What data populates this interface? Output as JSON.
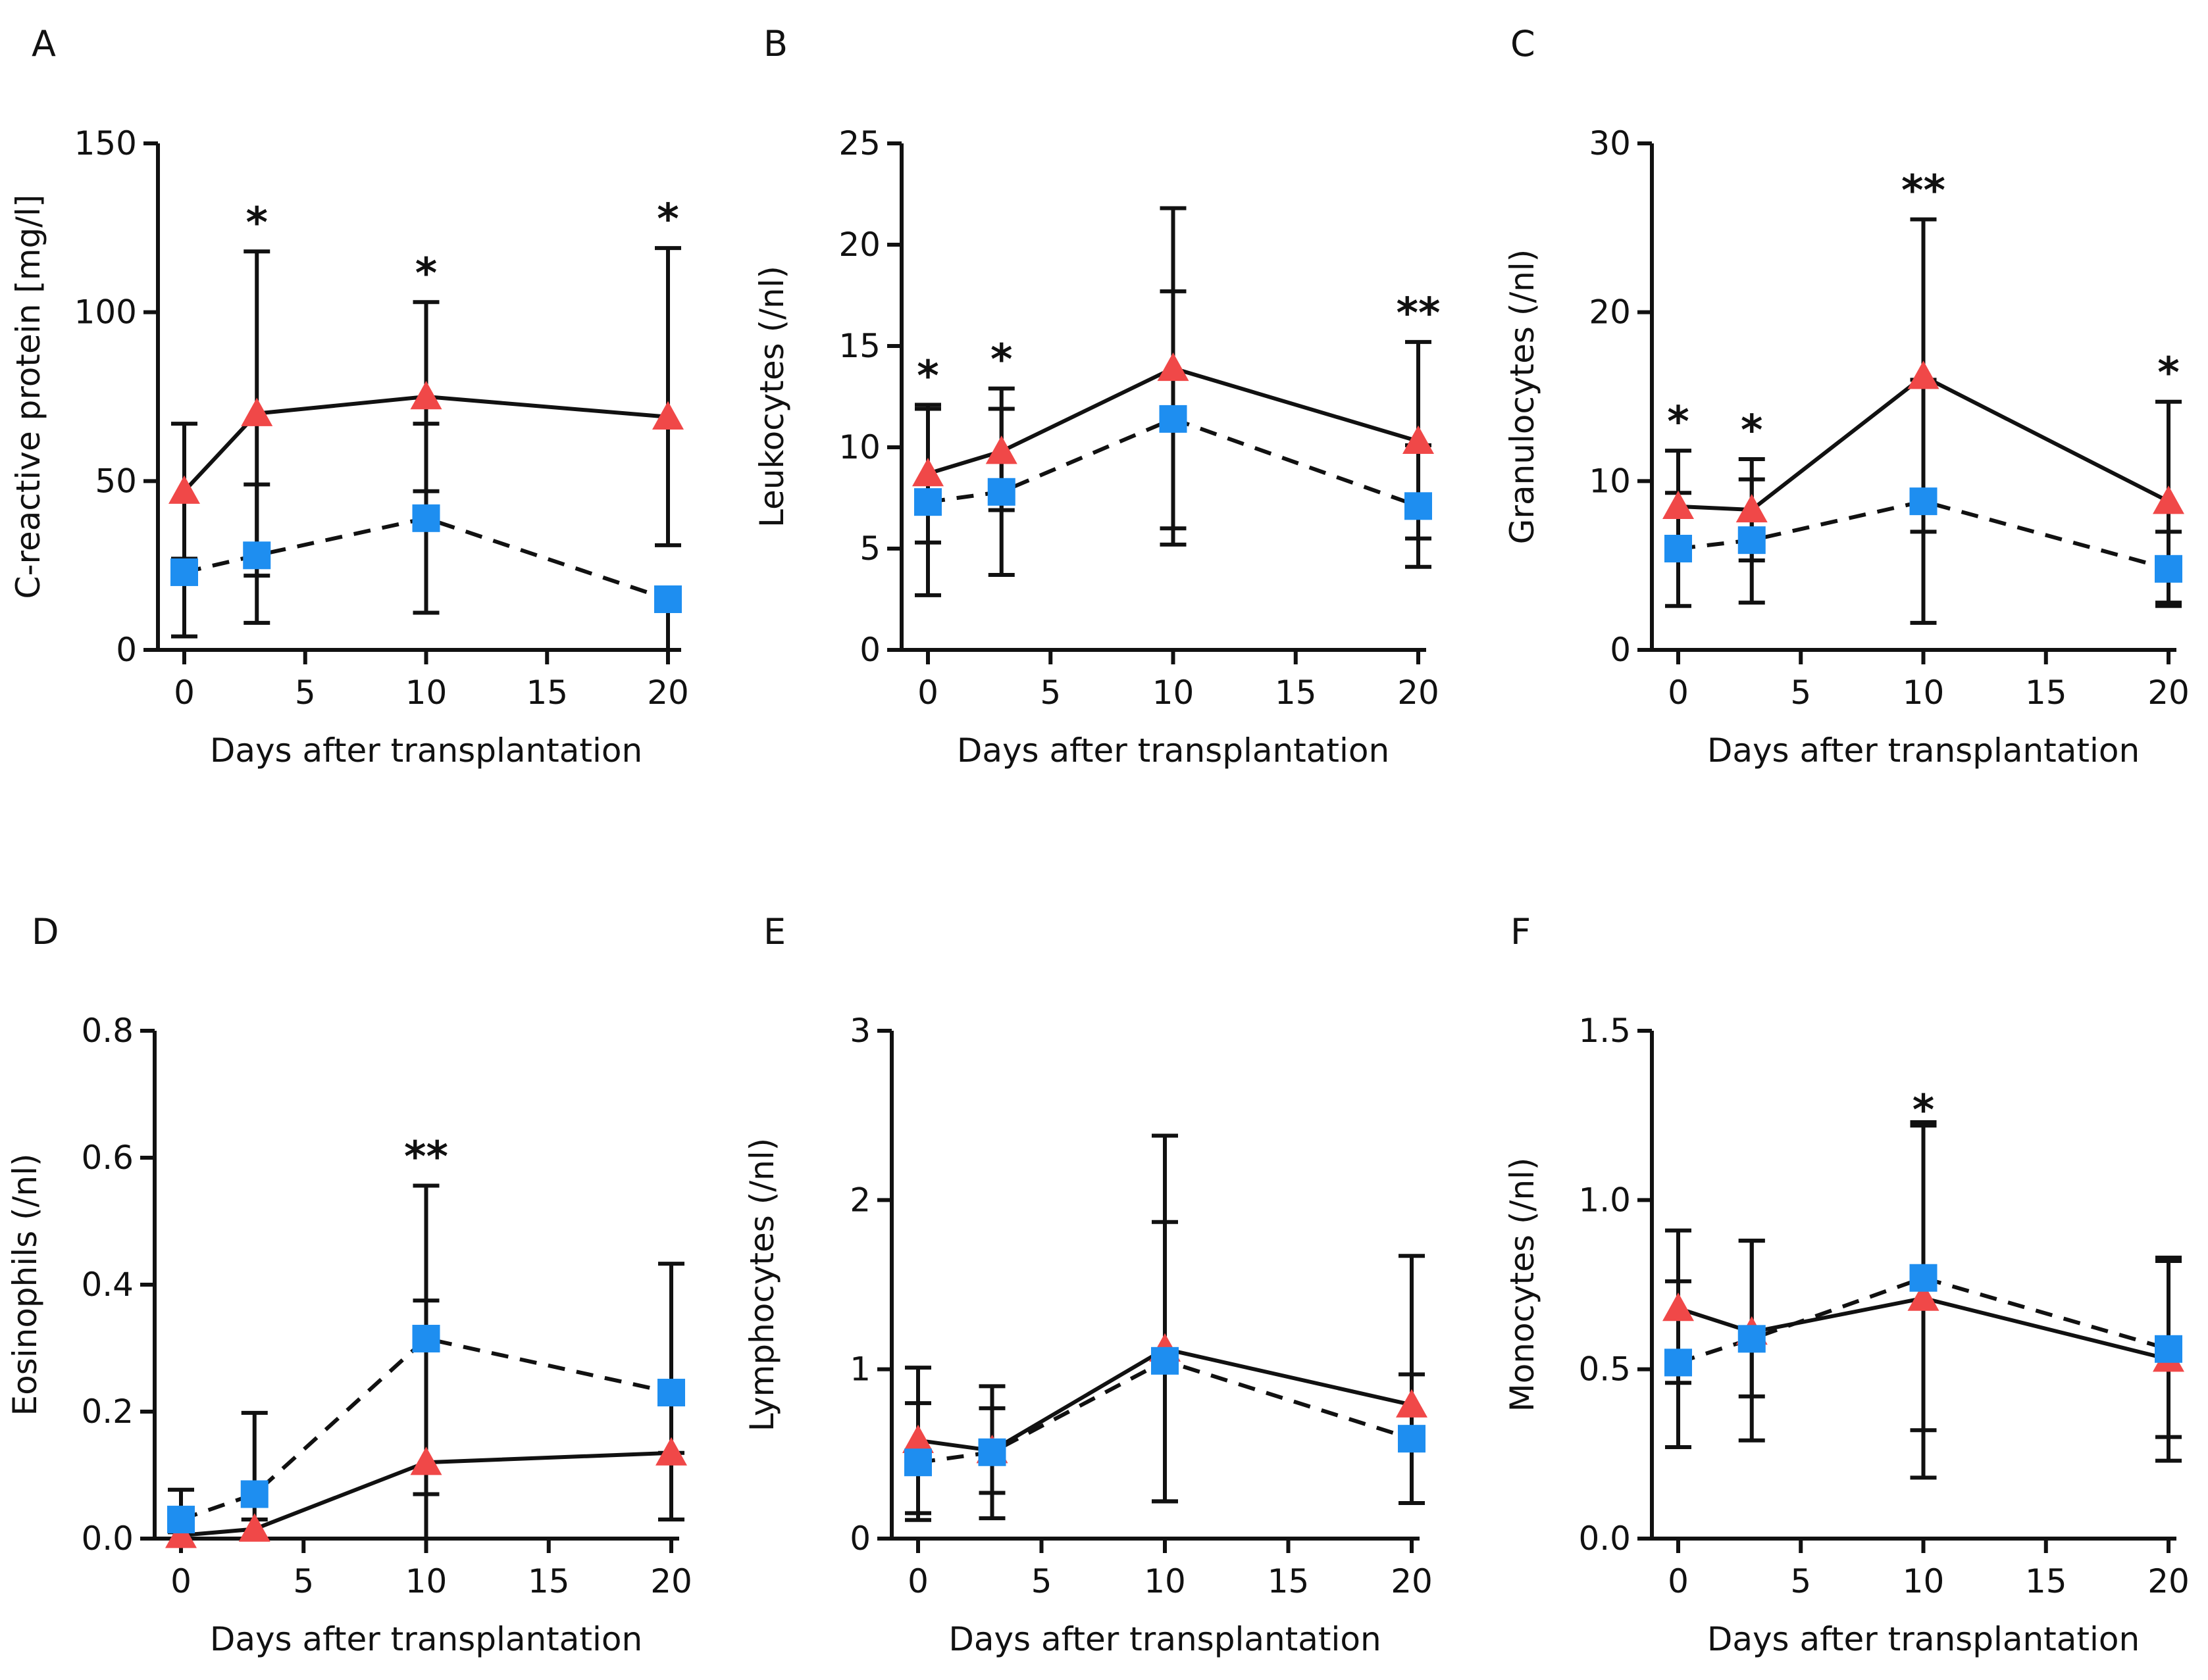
{
  "chart_data": [
    {
      "type": "line",
      "panel": "A",
      "xlabel": "Days after transplantation",
      "ylabel": "C-reactive protein [mg/l]",
      "xlim": [
        0,
        20
      ],
      "ylim": [
        0,
        150
      ],
      "xticks": [
        0,
        5,
        10,
        15,
        20
      ],
      "yticks": [
        0,
        50,
        100,
        150
      ],
      "x": [
        0,
        3,
        10,
        20
      ],
      "series": [
        {
          "name": "red-triangle",
          "marker": "triangle",
          "color": "#f04848",
          "line": "solid",
          "values": [
            47,
            70,
            75,
            69
          ],
          "err_low": [
            27,
            22,
            47,
            31
          ],
          "err_high": [
            67,
            118,
            103,
            119
          ]
        },
        {
          "name": "blue-square",
          "marker": "square",
          "color": "#1e8ef0",
          "line": "dashed",
          "values": [
            23,
            28,
            39,
            15
          ],
          "err_low": [
            4,
            8,
            11,
            0
          ],
          "err_high": [
            26,
            49,
            67,
            17
          ]
        }
      ],
      "annotations": [
        {
          "x": 3,
          "y": 118,
          "text": "*"
        },
        {
          "x": 10,
          "y": 103,
          "text": "*"
        },
        {
          "x": 20,
          "y": 119,
          "text": "*"
        }
      ]
    },
    {
      "type": "line",
      "panel": "B",
      "xlabel": "Days after transplantation",
      "ylabel": "Leukocytes (/nl)",
      "xlim": [
        0,
        20
      ],
      "ylim": [
        0,
        25
      ],
      "xticks": [
        0,
        5,
        10,
        15,
        20
      ],
      "yticks": [
        0,
        5,
        10,
        15,
        20,
        25
      ],
      "x": [
        0,
        3,
        10,
        20
      ],
      "series": [
        {
          "name": "red-triangle",
          "marker": "triangle",
          "color": "#f04848",
          "line": "solid",
          "values": [
            8.7,
            9.8,
            13.9,
            10.3
          ],
          "err_low": [
            5.3,
            6.9,
            6.0,
            5.5
          ],
          "err_high": [
            12.1,
            12.9,
            21.8,
            15.2
          ]
        },
        {
          "name": "blue-square",
          "marker": "square",
          "color": "#1e8ef0",
          "line": "dashed",
          "values": [
            7.3,
            7.8,
            11.4,
            7.1
          ],
          "err_low": [
            2.7,
            3.7,
            5.2,
            4.1
          ],
          "err_high": [
            11.9,
            11.9,
            17.7,
            10.1
          ]
        }
      ],
      "annotations": [
        {
          "x": 0,
          "y": 12.1,
          "text": "*"
        },
        {
          "x": 3,
          "y": 12.9,
          "text": "*"
        },
        {
          "x": 20,
          "y": 15.2,
          "text": "**"
        }
      ]
    },
    {
      "type": "line",
      "panel": "C",
      "xlabel": "Days after transplantation",
      "ylabel": "Granulocytes (/nl)",
      "xlim": [
        0,
        20
      ],
      "ylim": [
        0,
        30
      ],
      "xticks": [
        0,
        5,
        10,
        15,
        20
      ],
      "yticks": [
        0,
        10,
        20,
        30
      ],
      "x": [
        0,
        3,
        10,
        20
      ],
      "series": [
        {
          "name": "red-triangle",
          "marker": "triangle",
          "color": "#f04848",
          "line": "solid",
          "values": [
            8.5,
            8.3,
            16.2,
            8.8
          ],
          "err_low": [
            5.3,
            5.3,
            7.0,
            2.8
          ],
          "err_high": [
            11.8,
            11.3,
            25.5,
            14.7
          ]
        },
        {
          "name": "blue-square",
          "marker": "square",
          "color": "#1e8ef0",
          "line": "dashed",
          "values": [
            6.0,
            6.5,
            8.8,
            4.8
          ],
          "err_low": [
            2.6,
            2.8,
            1.6,
            2.6
          ],
          "err_high": [
            9.3,
            10.1,
            16.0,
            7.0
          ]
        }
      ],
      "annotations": [
        {
          "x": 0,
          "y": 11.8,
          "text": "*"
        },
        {
          "x": 3,
          "y": 11.3,
          "text": "*"
        },
        {
          "x": 10,
          "y": 25.5,
          "text": "**"
        },
        {
          "x": 20,
          "y": 14.7,
          "text": "*"
        }
      ]
    },
    {
      "type": "line",
      "panel": "D",
      "xlabel": "Days after transplantation",
      "ylabel": "Eosinophils (/nl)",
      "xlim": [
        0,
        20
      ],
      "ylim": [
        0,
        0.8
      ],
      "xticks": [
        0,
        5,
        10,
        15,
        20
      ],
      "yticks": [
        0.0,
        0.2,
        0.4,
        0.6,
        0.8
      ],
      "ytick_labels": [
        "0.0",
        "0.2",
        "0.4",
        "0.6",
        "0.8"
      ],
      "x": [
        0,
        3,
        10,
        20
      ],
      "series": [
        {
          "name": "red-triangle",
          "marker": "triangle",
          "color": "#f04848",
          "line": "solid",
          "values": [
            0.005,
            0.015,
            0.12,
            0.135
          ],
          "err_low": [
            0,
            0,
            0.07,
            0.03
          ],
          "err_high": [
            0.01,
            0.03,
            0.375,
            0.135
          ]
        },
        {
          "name": "blue-square",
          "marker": "square",
          "color": "#1e8ef0",
          "line": "dashed",
          "values": [
            0.03,
            0.07,
            0.315,
            0.23
          ],
          "err_low": [
            0,
            0,
            0,
            0.03
          ],
          "err_high": [
            0.077,
            0.198,
            0.556,
            0.433
          ]
        }
      ],
      "annotations": [
        {
          "x": 10,
          "y": 0.556,
          "text": "**"
        }
      ]
    },
    {
      "type": "line",
      "panel": "E",
      "xlabel": "Days after transplantation",
      "ylabel": "Lymphocytes (/nl)",
      "xlim": [
        0,
        20
      ],
      "ylim": [
        0,
        3
      ],
      "xticks": [
        0,
        5,
        10,
        15,
        20
      ],
      "yticks": [
        0,
        1,
        2,
        3
      ],
      "x": [
        0,
        3,
        10,
        20
      ],
      "series": [
        {
          "name": "red-triangle",
          "marker": "triangle",
          "color": "#f04848",
          "line": "solid",
          "values": [
            0.58,
            0.52,
            1.12,
            0.79
          ],
          "err_low": [
            0.11,
            0.27,
            0.22,
            0.21
          ],
          "err_high": [
            1.01,
            0.77,
            2.38,
            1.67
          ]
        },
        {
          "name": "blue-square",
          "marker": "square",
          "color": "#1e8ef0",
          "line": "dashed",
          "values": [
            0.45,
            0.51,
            1.05,
            0.59
          ],
          "err_low": [
            0.15,
            0.12,
            0.22,
            0.21
          ],
          "err_high": [
            0.8,
            0.9,
            1.87,
            0.97
          ]
        }
      ],
      "annotations": []
    },
    {
      "type": "line",
      "panel": "F",
      "xlabel": "Days after transplantation",
      "ylabel": "Monocytes (/nl)",
      "xlim": [
        0,
        20
      ],
      "ylim": [
        0,
        1.5
      ],
      "xticks": [
        0,
        5,
        10,
        15,
        20
      ],
      "yticks": [
        0.0,
        0.5,
        1.0,
        1.5
      ],
      "ytick_labels": [
        "0.0",
        "0.5",
        "1.0",
        "1.5"
      ],
      "x": [
        0,
        3,
        10,
        20
      ],
      "series": [
        {
          "name": "red-triangle",
          "marker": "triangle",
          "color": "#f04848",
          "line": "solid",
          "values": [
            0.68,
            0.61,
            0.71,
            0.53
          ],
          "err_low": [
            0.46,
            0.42,
            0.18,
            0.23
          ],
          "err_high": [
            0.91,
            0.88,
            1.23,
            0.83
          ]
        },
        {
          "name": "blue-square",
          "marker": "square",
          "color": "#1e8ef0",
          "line": "dashed",
          "values": [
            0.52,
            0.59,
            0.77,
            0.56
          ],
          "err_low": [
            0.27,
            0.29,
            0.32,
            0.3
          ],
          "err_high": [
            0.76,
            0.88,
            1.22,
            0.82
          ]
        }
      ],
      "annotations": [
        {
          "x": 10,
          "y": 1.18,
          "text": "*"
        }
      ]
    }
  ]
}
